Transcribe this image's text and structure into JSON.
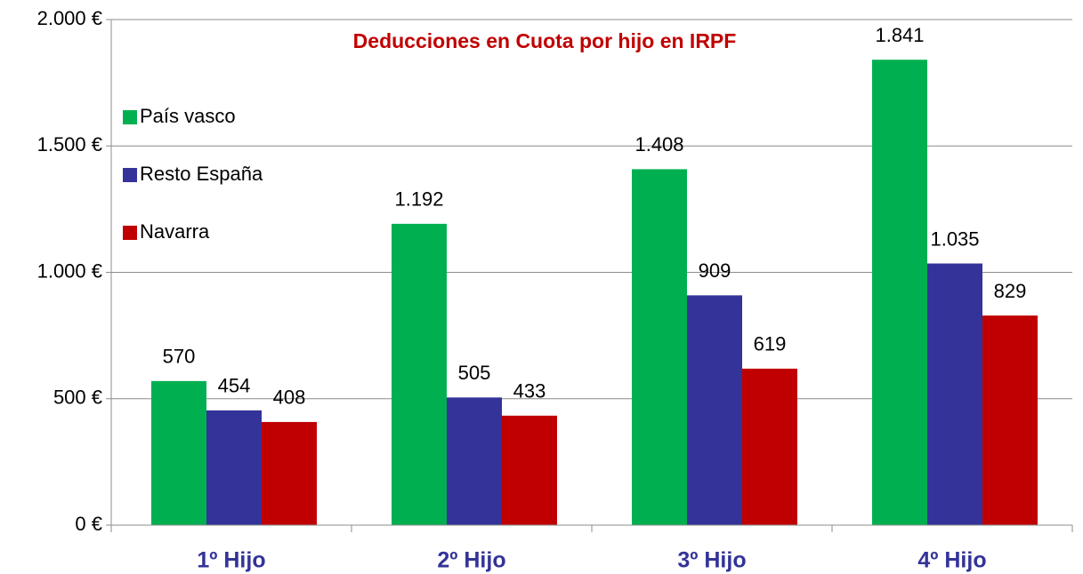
{
  "chart_data": {
    "type": "bar",
    "title": "Deducciones en Cuota por hijo en IRPF",
    "categories": [
      "1º Hijo",
      "2º Hijo",
      "3º Hijo",
      "4º Hijo"
    ],
    "series": [
      {
        "name": "País vasco",
        "color": "#00b050",
        "values": [
          570,
          1192,
          1408,
          1841
        ],
        "value_labels": [
          "570",
          "1.192",
          "1.408",
          "1.841"
        ]
      },
      {
        "name": "Resto España",
        "color": "#333399",
        "values": [
          454,
          505,
          909,
          1035
        ],
        "value_labels": [
          "454",
          "505",
          "909",
          "1.035"
        ]
      },
      {
        "name": "Navarra",
        "color": "#c00000",
        "values": [
          408,
          433,
          619,
          829
        ],
        "value_labels": [
          "408",
          "433",
          "619",
          "829"
        ]
      }
    ],
    "ylim": [
      0,
      2000
    ],
    "yticks": [
      {
        "value": 0,
        "label": "0 €"
      },
      {
        "value": 500,
        "label": "500 €"
      },
      {
        "value": 1000,
        "label": "1.000 €"
      },
      {
        "value": 1500,
        "label": "1.500 €"
      },
      {
        "value": 2000,
        "label": "2.000 €"
      }
    ],
    "grid": true,
    "legend": "upper left"
  }
}
